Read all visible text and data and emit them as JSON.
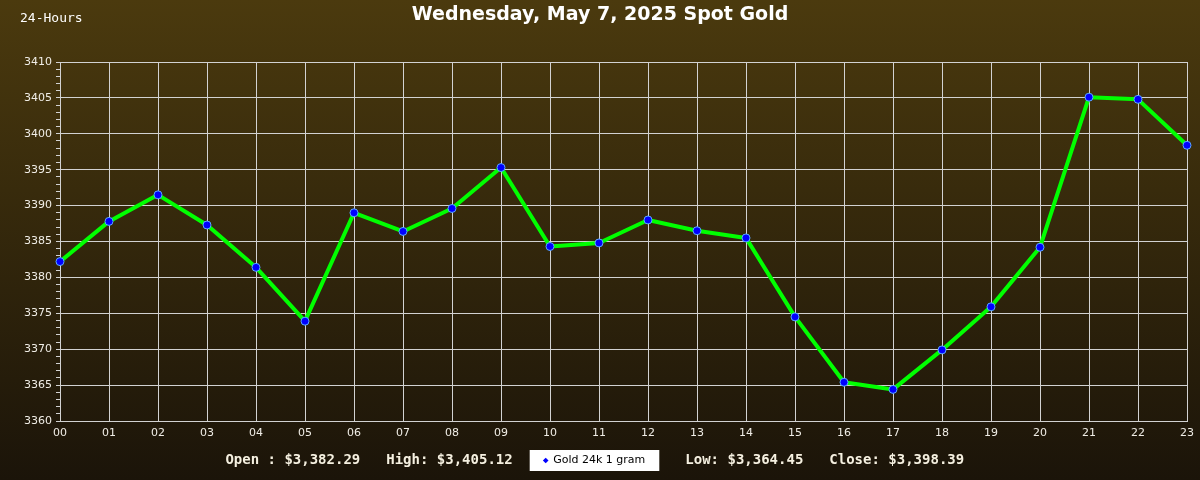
{
  "chart_data": {
    "type": "line",
    "title": "Wednesday, May 7, 2025 Spot Gold",
    "subtitle": "24-Hours",
    "categories": [
      "00",
      "01",
      "02",
      "03",
      "04",
      "05",
      "06",
      "07",
      "08",
      "09",
      "10",
      "11",
      "12",
      "13",
      "14",
      "15",
      "16",
      "17",
      "18",
      "19",
      "20",
      "21",
      "22",
      "23"
    ],
    "series": [
      {
        "name": "Gold 24k 1 gram",
        "color": "#00ff00",
        "values": [
          3382.2,
          3387.8,
          3391.5,
          3387.3,
          3381.4,
          3373.9,
          3389.0,
          3386.4,
          3389.6,
          3395.3,
          3384.3,
          3384.8,
          3388.0,
          3386.5,
          3385.5,
          3374.5,
          3365.4,
          3364.4,
          3369.9,
          3375.9,
          3384.2,
          3405.1,
          3404.8,
          3398.4
        ]
      }
    ],
    "ylim": [
      3360,
      3410
    ],
    "yticks": [
      3360,
      {
        "value": 3361,
        "label": null
      },
      {
        "value": 3362,
        "label": null
      },
      {
        "value": 3363,
        "label": null
      },
      {
        "value": 3364,
        "label": null
      },
      3365,
      {
        "value": 3366,
        "label": null
      },
      {
        "value": 3367,
        "label": null
      },
      {
        "value": 3368,
        "label": null
      },
      {
        "value": 3369,
        "label": null
      },
      3370,
      {
        "value": 3371,
        "label": null
      },
      {
        "value": 3372,
        "label": null
      },
      {
        "value": 3373,
        "label": null
      },
      {
        "value": 3374,
        "label": null
      },
      3375,
      {
        "value": 3376,
        "label": null
      },
      {
        "value": 3377,
        "label": null
      },
      {
        "value": 3378,
        "label": null
      },
      {
        "value": 3379,
        "label": null
      },
      3380,
      {
        "value": 3381,
        "label": null
      },
      {
        "value": 3382,
        "label": null
      },
      {
        "value": 3383,
        "label": null
      },
      {
        "value": 3384,
        "label": null
      },
      3385,
      {
        "value": 3386,
        "label": null
      },
      {
        "value": 3387,
        "label": null
      },
      {
        "value": 3388,
        "label": null
      },
      {
        "value": 3389,
        "label": null
      },
      3390,
      {
        "value": 3391,
        "label": null
      },
      {
        "value": 3392,
        "label": null
      },
      {
        "value": 3393,
        "label": null
      },
      {
        "value": 3394,
        "label": null
      },
      3395,
      {
        "value": 3396,
        "label": null
      },
      {
        "value": 3397,
        "label": null
      },
      {
        "value": 3398,
        "label": null
      },
      {
        "value": 3399,
        "label": null
      },
      3400,
      {
        "value": 3401,
        "label": null
      },
      {
        "value": 3402,
        "label": null
      },
      {
        "value": 3403,
        "label": null
      },
      {
        "value": 3404,
        "label": null
      },
      3405,
      {
        "value": 3406,
        "label": null
      },
      {
        "value": 3407,
        "label": null
      },
      {
        "value": 3408,
        "label": null
      },
      {
        "value": 3409,
        "label": null
      },
      3410
    ],
    "grid": true,
    "legend": "bottom",
    "marker": "circle",
    "line_style": "solid",
    "annotations": [
      "Open : $3,382.29",
      "High: $3,405.12",
      "Low: $3,364.45",
      "Close: $3,398.39"
    ]
  }
}
